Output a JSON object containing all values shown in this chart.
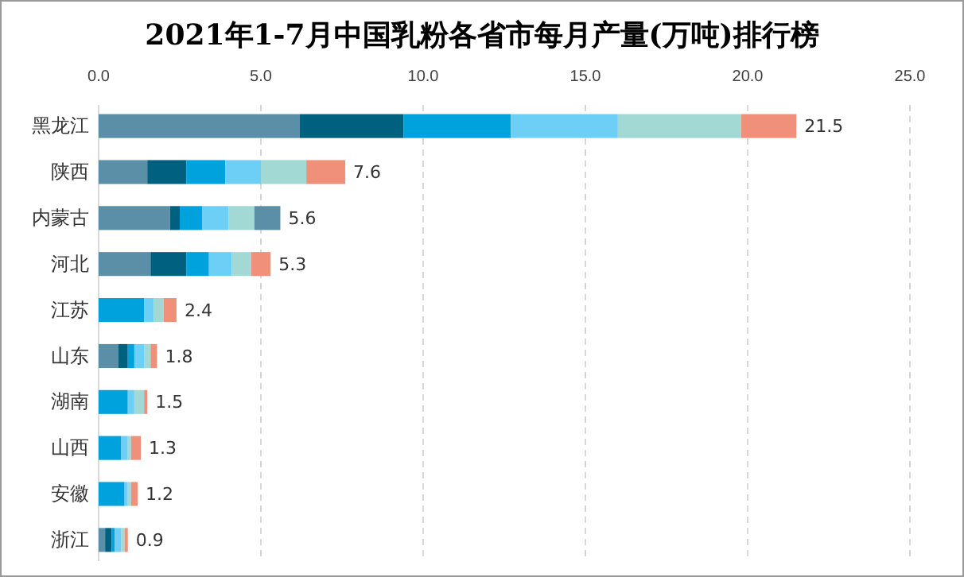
{
  "chart_data": {
    "type": "bar",
    "title": "2021年1-7月中国乳粉各省市每月产量(万吨)排行榜",
    "orientation": "horizontal",
    "stacked": true,
    "categories": [
      "黑龙江",
      "陕西",
      "内蒙古",
      "河北",
      "江苏",
      "山东",
      "湖南",
      "山西",
      "安徽",
      "浙江"
    ],
    "series": [
      {
        "color": "#5b8fa8",
        "values": [
          6.2,
          1.5,
          2.2,
          1.6,
          0,
          0.6,
          0,
          0,
          0,
          0.2
        ]
      },
      {
        "color": "#00607f",
        "values": [
          3.2,
          1.2,
          0.3,
          1.1,
          0,
          0.3,
          0,
          0,
          0,
          0.2
        ]
      },
      {
        "color": "#00a2dd",
        "values": [
          3.3,
          1.2,
          0.7,
          0.7,
          1.4,
          0.2,
          0.9,
          0.7,
          0.8,
          0.1
        ]
      },
      {
        "color": "#6dcff6",
        "values": [
          3.3,
          1.1,
          0.8,
          0.7,
          0.3,
          0.3,
          0.2,
          0.2,
          0.1,
          0.2
        ]
      },
      {
        "color": "#a2d9d4",
        "values": [
          3.8,
          1.4,
          0.8,
          0.6,
          0.3,
          0.2,
          0.3,
          0.1,
          0.1,
          0.1
        ]
      },
      {
        "color": "#f0907a",
        "values": [
          1.7,
          1.2,
          0,
          0.6,
          0.4,
          0.2,
          0.1,
          0.3,
          0.2,
          0.1
        ]
      },
      {
        "color": "#5b8fa8",
        "values": [
          0,
          0,
          0.8,
          0,
          0,
          0,
          0,
          0,
          0,
          0
        ]
      }
    ],
    "totals": [
      "21.5",
      "7.6",
      "5.6",
      "5.3",
      "2.4",
      "1.8",
      "1.5",
      "1.3",
      "1.2",
      "0.9"
    ],
    "xlim": [
      0,
      25
    ],
    "xticks": [
      {
        "value": 0,
        "label": "0.0"
      },
      {
        "value": 5,
        "label": "5.0"
      },
      {
        "value": 10,
        "label": "10.0"
      },
      {
        "value": 15,
        "label": "15.0"
      },
      {
        "value": 20,
        "label": "20.0"
      },
      {
        "value": 25,
        "label": "25.0"
      }
    ],
    "grid": "x"
  }
}
